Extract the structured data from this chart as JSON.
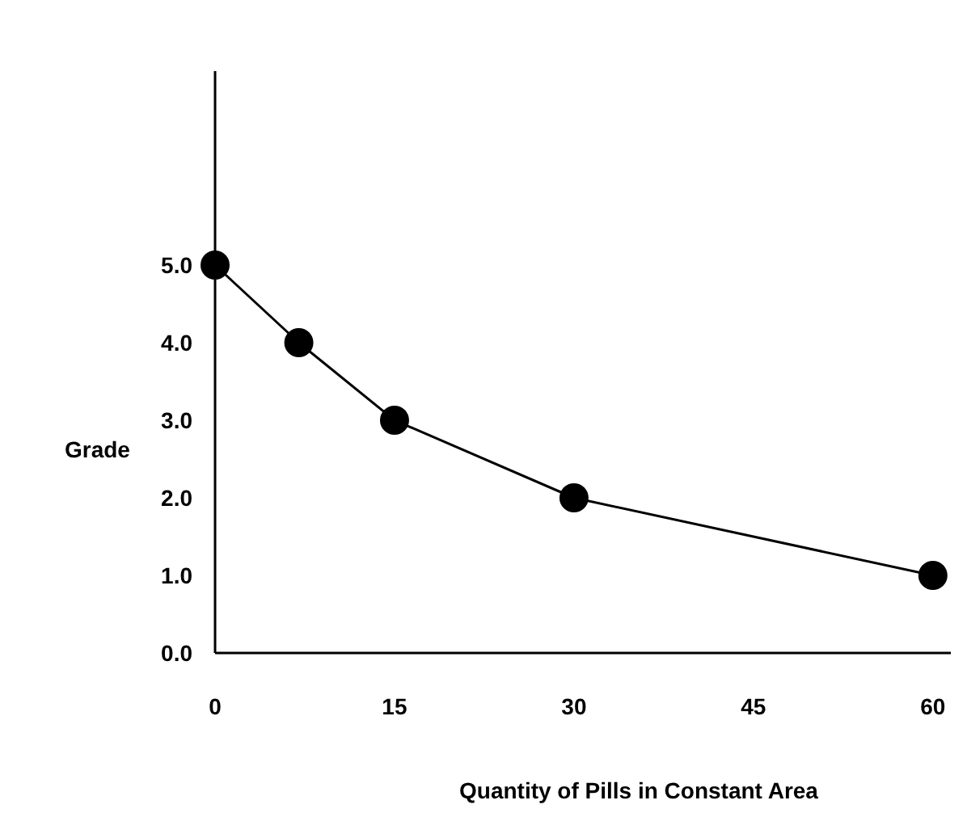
{
  "chart_data": {
    "type": "line",
    "xlabel": "Quantity of Pills in Constant Area",
    "ylabel": "Grade",
    "series": [
      {
        "x": [
          0,
          7,
          15,
          30,
          60
        ],
        "values": [
          5,
          4,
          3,
          2,
          1
        ],
        "color": "#000000"
      }
    ],
    "xlim": [
      0,
      61.5
    ],
    "xticks": [
      0,
      15,
      30,
      45,
      60
    ],
    "ylim": [
      0,
      7.5
    ],
    "yticks": [
      {
        "value": 0,
        "label": "0.0"
      },
      {
        "value": 1,
        "label": "1.0"
      },
      {
        "value": 2,
        "label": "2.0"
      },
      {
        "value": 3,
        "label": "3.0"
      },
      {
        "value": 4,
        "label": "4.0"
      },
      {
        "value": 5,
        "label": "5.0"
      }
    ],
    "grid": false,
    "marker": "circle",
    "line_style": "solid"
  }
}
